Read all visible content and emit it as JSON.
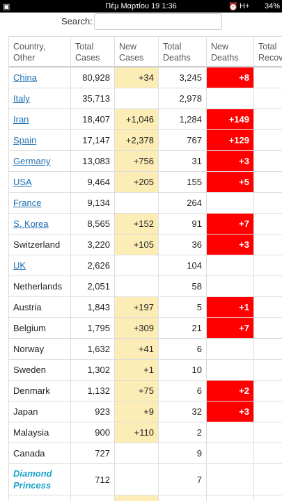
{
  "status_bar": {
    "time": "Πέμ Μαρτίου 19 1:36",
    "network": "H+",
    "battery": "34%"
  },
  "search": {
    "label": "Search:"
  },
  "table": {
    "headers": [
      "Country, Other",
      "Total Cases",
      "New Cases",
      "Total Deaths",
      "New Deaths",
      "Total Recovered"
    ],
    "rows": [
      {
        "country": "China",
        "total_cases": "80,928",
        "new_cases": "+34",
        "total_deaths": "3,245",
        "new_deaths": "+8",
        "link": true
      },
      {
        "country": "Italy",
        "total_cases": "35,713",
        "new_cases": null,
        "total_deaths": "2,978",
        "new_deaths": null,
        "link": true
      },
      {
        "country": "Iran",
        "total_cases": "18,407",
        "new_cases": "+1,046",
        "total_deaths": "1,284",
        "new_deaths": "+149",
        "link": true
      },
      {
        "country": "Spain",
        "total_cases": "17,147",
        "new_cases": "+2,378",
        "total_deaths": "767",
        "new_deaths": "+129",
        "link": true
      },
      {
        "country": "Germany",
        "total_cases": "13,083",
        "new_cases": "+756",
        "total_deaths": "31",
        "new_deaths": "+3",
        "link": true
      },
      {
        "country": "USA",
        "total_cases": "9,464",
        "new_cases": "+205",
        "total_deaths": "155",
        "new_deaths": "+5",
        "link": true
      },
      {
        "country": "France",
        "total_cases": "9,134",
        "new_cases": null,
        "total_deaths": "264",
        "new_deaths": null,
        "link": true
      },
      {
        "country": "S. Korea",
        "total_cases": "8,565",
        "new_cases": "+152",
        "total_deaths": "91",
        "new_deaths": "+7",
        "link": true
      },
      {
        "country": "Switzerland",
        "total_cases": "3,220",
        "new_cases": "+105",
        "total_deaths": "36",
        "new_deaths": "+3",
        "link": false
      },
      {
        "country": "UK",
        "total_cases": "2,626",
        "new_cases": null,
        "total_deaths": "104",
        "new_deaths": null,
        "link": true
      },
      {
        "country": "Netherlands",
        "total_cases": "2,051",
        "new_cases": null,
        "total_deaths": "58",
        "new_deaths": null,
        "link": false
      },
      {
        "country": "Austria",
        "total_cases": "1,843",
        "new_cases": "+197",
        "total_deaths": "5",
        "new_deaths": "+1",
        "link": false
      },
      {
        "country": "Belgium",
        "total_cases": "1,795",
        "new_cases": "+309",
        "total_deaths": "21",
        "new_deaths": "+7",
        "link": false
      },
      {
        "country": "Norway",
        "total_cases": "1,632",
        "new_cases": "+41",
        "total_deaths": "6",
        "new_deaths": null,
        "link": false
      },
      {
        "country": "Sweden",
        "total_cases": "1,302",
        "new_cases": "+1",
        "total_deaths": "10",
        "new_deaths": null,
        "link": false
      },
      {
        "country": "Denmark",
        "total_cases": "1,132",
        "new_cases": "+75",
        "total_deaths": "6",
        "new_deaths": "+2",
        "link": false
      },
      {
        "country": "Japan",
        "total_cases": "923",
        "new_cases": "+9",
        "total_deaths": "32",
        "new_deaths": "+3",
        "link": false
      },
      {
        "country": "Malaysia",
        "total_cases": "900",
        "new_cases": "+110",
        "total_deaths": "2",
        "new_deaths": null,
        "link": false
      },
      {
        "country": "Canada",
        "total_cases": "727",
        "new_cases": null,
        "total_deaths": "9",
        "new_deaths": null,
        "link": false
      },
      {
        "country": "Diamond Princess",
        "total_cases": "712",
        "new_cases": null,
        "total_deaths": "7",
        "new_deaths": null,
        "link": false
      }
    ]
  }
}
